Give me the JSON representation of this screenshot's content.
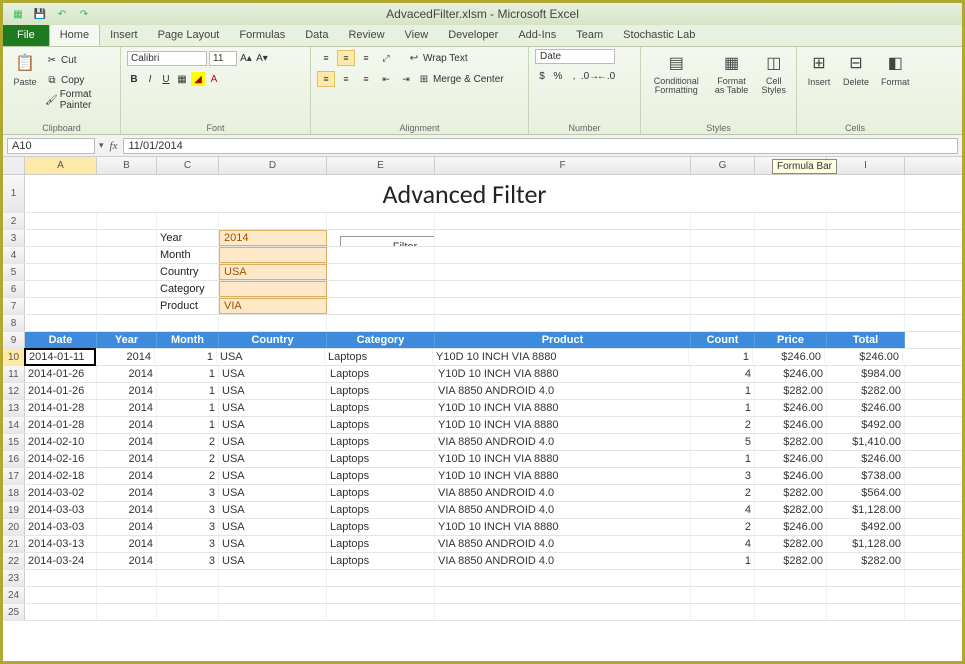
{
  "window": {
    "title": "AdvacedFilter.xlsm - Microsoft Excel"
  },
  "tabs": {
    "file": "File",
    "items": [
      "Home",
      "Insert",
      "Page Layout",
      "Formulas",
      "Data",
      "Review",
      "View",
      "Developer",
      "Add-Ins",
      "Team",
      "Stochastic Lab"
    ],
    "active": "Home"
  },
  "ribbon": {
    "clipboard": {
      "label": "Clipboard",
      "paste": "Paste",
      "cut": "Cut",
      "copy": "Copy",
      "painter": "Format Painter"
    },
    "font": {
      "label": "Font",
      "name": "Calibri",
      "size": "11"
    },
    "alignment": {
      "label": "Alignment",
      "wrap": "Wrap Text",
      "merge": "Merge & Center"
    },
    "number": {
      "label": "Number",
      "format": "Date"
    },
    "styles": {
      "label": "Styles",
      "cond": "Conditional Formatting",
      "table": "Format as Table",
      "cell": "Cell Styles"
    },
    "cells": {
      "label": "Cells",
      "insert": "Insert",
      "delete": "Delete",
      "format": "Format"
    }
  },
  "fx": {
    "name": "A10",
    "formula": "11/01/2014",
    "tooltip": "Formula Bar"
  },
  "cols": [
    "A",
    "B",
    "C",
    "D",
    "E",
    "F",
    "G",
    "H",
    "I"
  ],
  "sheet": {
    "title": "Advanced Filter",
    "filter_labels": {
      "year": "Year",
      "month": "Month",
      "country": "Country",
      "category": "Category",
      "product": "Product"
    },
    "filter_values": {
      "year": "2014",
      "month": "",
      "country": "USA",
      "category": "",
      "product": "VIA"
    },
    "filter_btn": "Filter",
    "headers": [
      "Date",
      "Year",
      "Month",
      "Country",
      "Category",
      "Product",
      "Count",
      "Price",
      "Total"
    ],
    "rows": [
      {
        "n": 10,
        "d": "2014-01-11",
        "y": "2014",
        "m": "1",
        "co": "USA",
        "ca": "Laptops",
        "p": "Y10D 10 INCH VIA 8880",
        "c": "1",
        "pr": "$246.00",
        "t": "$246.00"
      },
      {
        "n": 11,
        "d": "2014-01-26",
        "y": "2014",
        "m": "1",
        "co": "USA",
        "ca": "Laptops",
        "p": "Y10D 10 INCH VIA 8880",
        "c": "4",
        "pr": "$246.00",
        "t": "$984.00"
      },
      {
        "n": 12,
        "d": "2014-01-26",
        "y": "2014",
        "m": "1",
        "co": "USA",
        "ca": "Laptops",
        "p": "VIA 8850 ANDROID 4.0",
        "c": "1",
        "pr": "$282.00",
        "t": "$282.00"
      },
      {
        "n": 13,
        "d": "2014-01-28",
        "y": "2014",
        "m": "1",
        "co": "USA",
        "ca": "Laptops",
        "p": "Y10D 10 INCH VIA 8880",
        "c": "1",
        "pr": "$246.00",
        "t": "$246.00"
      },
      {
        "n": 14,
        "d": "2014-01-28",
        "y": "2014",
        "m": "1",
        "co": "USA",
        "ca": "Laptops",
        "p": "Y10D 10 INCH VIA 8880",
        "c": "2",
        "pr": "$246.00",
        "t": "$492.00"
      },
      {
        "n": 15,
        "d": "2014-02-10",
        "y": "2014",
        "m": "2",
        "co": "USA",
        "ca": "Laptops",
        "p": "VIA 8850 ANDROID 4.0",
        "c": "5",
        "pr": "$282.00",
        "t": "$1,410.00"
      },
      {
        "n": 16,
        "d": "2014-02-16",
        "y": "2014",
        "m": "2",
        "co": "USA",
        "ca": "Laptops",
        "p": "Y10D 10 INCH VIA 8880",
        "c": "1",
        "pr": "$246.00",
        "t": "$246.00"
      },
      {
        "n": 17,
        "d": "2014-02-18",
        "y": "2014",
        "m": "2",
        "co": "USA",
        "ca": "Laptops",
        "p": "Y10D 10 INCH VIA 8880",
        "c": "3",
        "pr": "$246.00",
        "t": "$738.00"
      },
      {
        "n": 18,
        "d": "2014-03-02",
        "y": "2014",
        "m": "3",
        "co": "USA",
        "ca": "Laptops",
        "p": "VIA 8850 ANDROID 4.0",
        "c": "2",
        "pr": "$282.00",
        "t": "$564.00"
      },
      {
        "n": 19,
        "d": "2014-03-03",
        "y": "2014",
        "m": "3",
        "co": "USA",
        "ca": "Laptops",
        "p": "VIA 8850 ANDROID 4.0",
        "c": "4",
        "pr": "$282.00",
        "t": "$1,128.00"
      },
      {
        "n": 20,
        "d": "2014-03-03",
        "y": "2014",
        "m": "3",
        "co": "USA",
        "ca": "Laptops",
        "p": "Y10D 10 INCH VIA 8880",
        "c": "2",
        "pr": "$246.00",
        "t": "$492.00"
      },
      {
        "n": 21,
        "d": "2014-03-13",
        "y": "2014",
        "m": "3",
        "co": "USA",
        "ca": "Laptops",
        "p": "VIA 8850 ANDROID 4.0",
        "c": "4",
        "pr": "$282.00",
        "t": "$1,128.00"
      },
      {
        "n": 22,
        "d": "2014-03-24",
        "y": "2014",
        "m": "3",
        "co": "USA",
        "ca": "Laptops",
        "p": "VIA 8850 ANDROID 4.0",
        "c": "1",
        "pr": "$282.00",
        "t": "$282.00"
      }
    ],
    "empty_rows": [
      23,
      24,
      25
    ]
  },
  "colors": {
    "header_bg": "#3d8bdc",
    "input_bg": "#fde9c8",
    "input_border": "#d8b060",
    "input_text": "#a05000"
  }
}
